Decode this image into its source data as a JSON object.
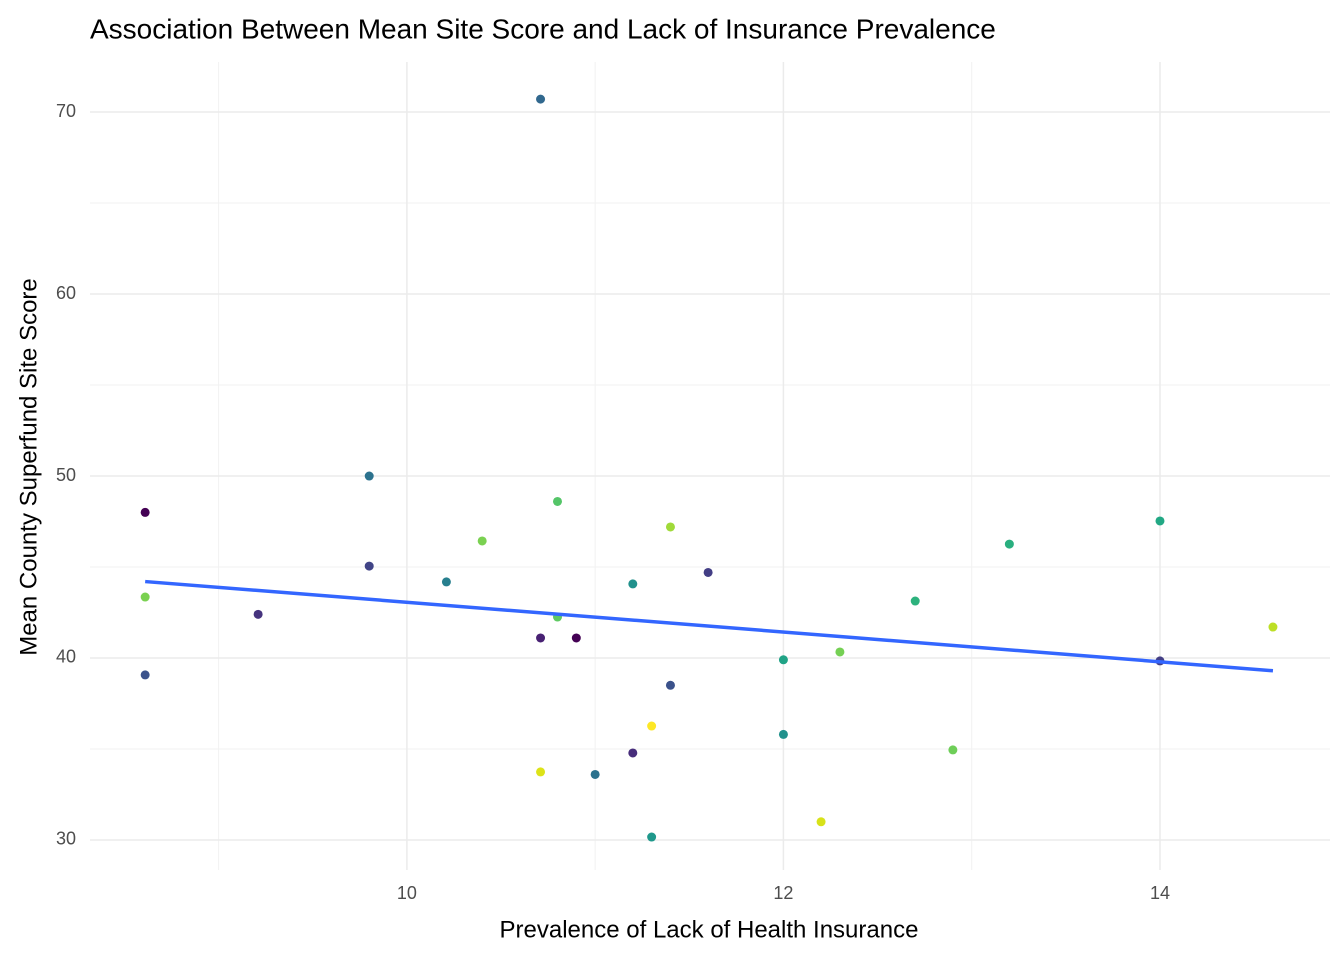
{
  "chart_data": {
    "type": "scatter",
    "title": "Association Between Mean Site Score and Lack of Insurance Prevalence",
    "x_label": "Prevalence of Lack of Health Insurance",
    "y_label": "Mean County Superfund Site Score",
    "x": [
      8.61,
      8.61,
      8.61,
      9.21,
      9.8,
      9.8,
      10.21,
      10.4,
      10.71,
      10.71,
      10.71,
      10.8,
      10.8,
      10.9,
      11.0,
      11.2,
      11.2,
      11.3,
      11.3,
      11.4,
      11.4,
      11.6,
      12.0,
      12.0,
      12.2,
      12.3,
      12.7,
      12.9,
      13.2,
      14.0,
      14.0,
      14.6
    ],
    "values": [
      48.0,
      43.35,
      39.07,
      42.4,
      50.0,
      45.05,
      44.18,
      46.43,
      70.71,
      41.1,
      33.74,
      48.6,
      42.25,
      41.1,
      33.6,
      44.07,
      34.78,
      36.26,
      30.16,
      47.2,
      38.5,
      44.7,
      39.9,
      35.8,
      31.0,
      40.33,
      43.13,
      34.95,
      46.26,
      47.53,
      39.84,
      41.7
    ],
    "colors": [
      "#440154",
      "#7ad151",
      "#3b528b",
      "#46337e",
      "#2c728e",
      "#414487",
      "#277f8e",
      "#7ad151",
      "#31688e",
      "#482173",
      "#dde318",
      "#54c568",
      "#5ec962",
      "#440154",
      "#2c728e",
      "#21918c",
      "#472d7b",
      "#fde725",
      "#1f988b",
      "#a0da39",
      "#3b528b",
      "#433e85",
      "#20a386",
      "#21918c",
      "#d8e219",
      "#75d054",
      "#2db27d",
      "#6ece58",
      "#29af7f",
      "#22a884",
      "#433e85",
      "#bddf26"
    ],
    "trend": {
      "x": [
        8.61,
        14.6
      ],
      "values": [
        44.2,
        39.3
      ],
      "color": "#3366ff"
    },
    "xlim": [
      8.317,
      14.903
    ],
    "ylim": [
      28.35,
      72.75
    ],
    "xticks": [
      10,
      12,
      14
    ],
    "yticks": [
      30,
      40,
      50,
      60,
      70
    ],
    "grid": true
  }
}
